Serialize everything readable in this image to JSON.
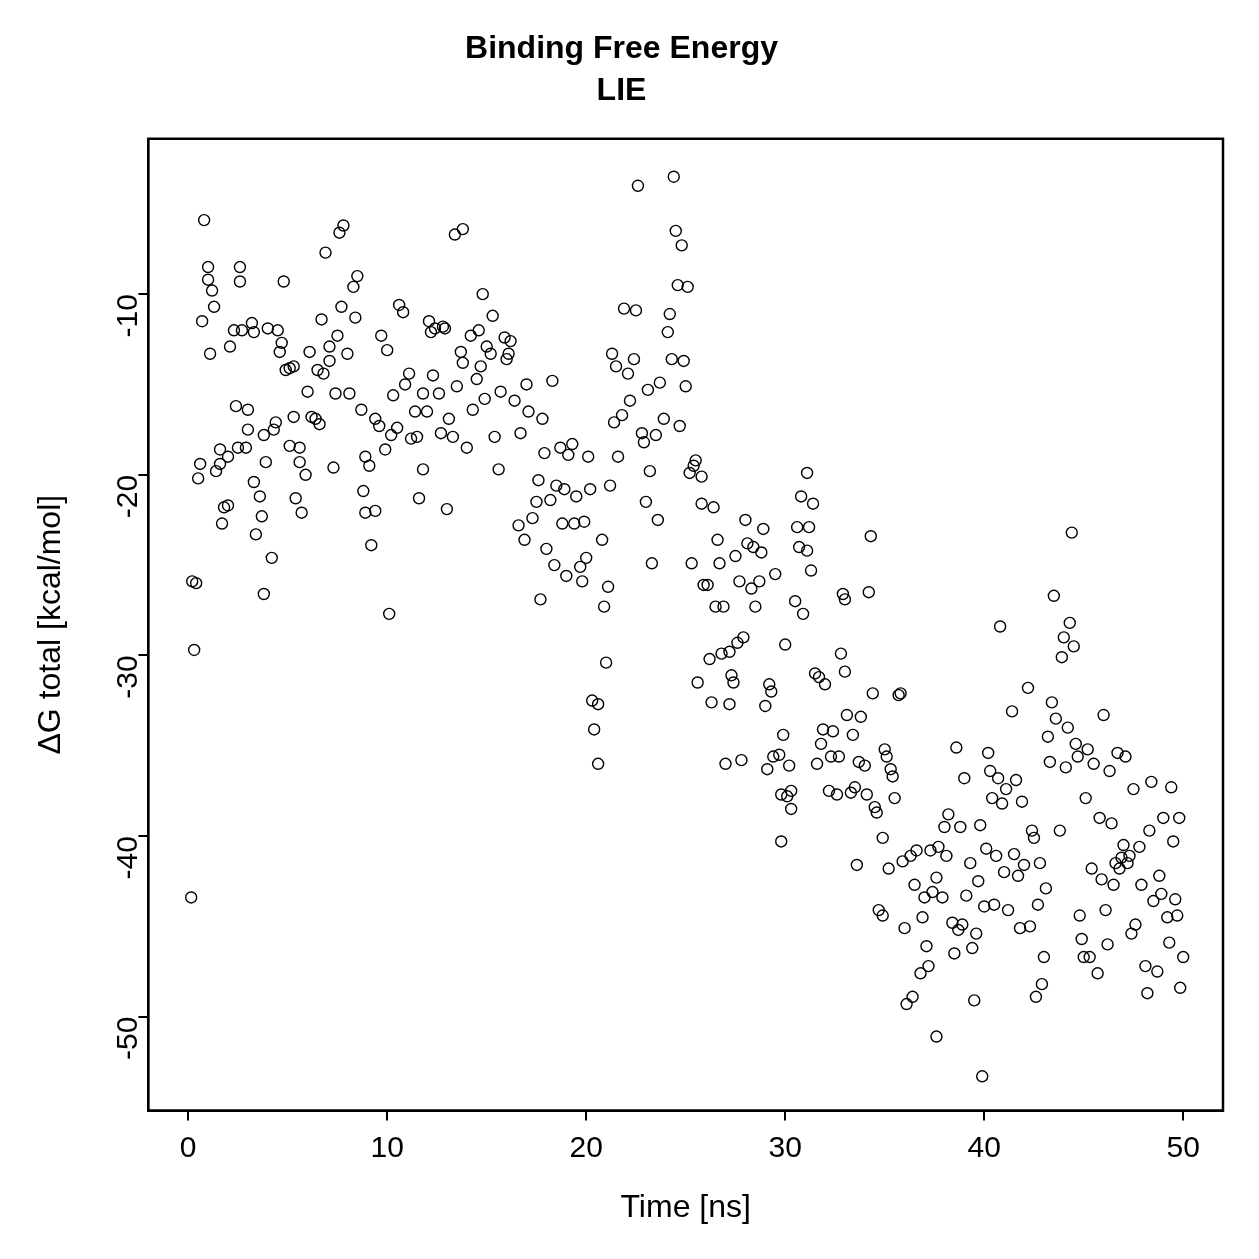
{
  "chart_data": {
    "type": "scatter",
    "title": "Binding Free Energy",
    "subtitle": "LIE",
    "xlabel": "Time [ns]",
    "ylabel": "ΔG total [kcal/mol]",
    "marker": "circle",
    "color": "#000000",
    "xlim": [
      -2,
      52
    ],
    "ylim": [
      -55.2,
      -1.4
    ],
    "xticks": [
      0,
      10,
      20,
      30,
      40,
      50
    ],
    "yticks": [
      -50,
      -40,
      -30,
      -20,
      -10
    ],
    "x": [
      0.15,
      0.2,
      0.4,
      0.3,
      0.8,
      0.7,
      1.0,
      1.0,
      1.2,
      1.3,
      1.1,
      0.5,
      0.6,
      1.4,
      1.6,
      1.6,
      1.7,
      1.8,
      2.0,
      2.0,
      2.1,
      2.3,
      2.4,
      2.5,
      2.6,
      2.6,
      2.7,
      2.9,
      3.0,
      3.0,
      3.2,
      3.3,
      3.3,
      3.4,
      3.6,
      3.7,
      3.8,
      3.8,
      3.9,
      4.0,
      4.2,
      4.3,
      4.4,
      4.5,
      4.6,
      4.7,
      4.8,
      4.9,
      5.1,
      5.1,
      5.3,
      5.3,
      5.4,
      5.6,
      5.6,
      5.7,
      5.9,
      6.0,
      6.1,
      6.2,
      6.4,
      6.5,
      6.6,
      6.7,
      6.8,
      6.9,
      7.1,
      7.1,
      7.3,
      7.4,
      7.5,
      7.6,
      7.8,
      7.7,
      8.0,
      8.1,
      8.3,
      8.4,
      8.5,
      8.7,
      8.8,
      8.9,
      8.9,
      9.1,
      9.2,
      9.4,
      9.4,
      9.6,
      9.7,
      9.9,
      10.0,
      10.1,
      10.2,
      10.3,
      10.5,
      10.6,
      10.8,
      10.9,
      11.1,
      11.2,
      11.4,
      11.5,
      11.6,
      11.8,
      11.8,
      12.0,
      12.1,
      12.2,
      12.3,
      12.4,
      12.6,
      12.7,
      12.8,
      12.9,
      13.0,
      13.1,
      13.3,
      13.4,
      13.5,
      13.7,
      13.8,
      13.8,
      14.0,
      14.2,
      14.3,
      14.5,
      14.6,
      14.7,
      14.8,
      14.9,
      15.0,
      15.2,
      15.3,
      15.4,
      15.6,
      15.7,
      15.9,
      16.0,
      16.1,
      16.2,
      16.4,
      16.6,
      16.7,
      16.9,
      17.0,
      17.1,
      17.3,
      17.5,
      17.6,
      17.7,
      17.8,
      17.9,
      18.0,
      18.2,
      18.3,
      18.4,
      18.5,
      18.7,
      18.8,
      18.9,
      19.0,
      19.1,
      19.3,
      19.4,
      19.5,
      19.7,
      19.8,
      19.9,
      20.0,
      20.1,
      20.2,
      20.3,
      20.4,
      20.6,
      20.6,
      20.8,
      20.9,
      21.0,
      21.1,
      21.2,
      21.3,
      21.4,
      21.5,
      21.6,
      21.8,
      21.9,
      22.1,
      22.2,
      22.4,
      22.5,
      22.6,
      22.8,
      22.9,
      23.0,
      23.1,
      23.2,
      23.3,
      23.5,
      23.6,
      23.7,
      23.9,
      24.1,
      24.2,
      24.3,
      24.4,
      24.5,
      24.6,
      24.8,
      24.7,
      24.9,
      25.0,
      25.1,
      25.2,
      25.3,
      25.4,
      25.5,
      25.6,
      25.8,
      25.8,
      25.9,
      26.1,
      26.2,
      26.3,
      26.4,
      26.5,
      26.6,
      26.7,
      26.8,
      26.9,
      27.0,
      27.2,
      27.2,
      27.3,
      27.4,
      27.5,
      27.6,
      27.7,
      27.8,
      27.9,
      28.0,
      28.1,
      28.3,
      28.4,
      28.5,
      28.7,
      28.8,
      28.9,
      29.0,
      29.1,
      29.2,
      29.3,
      29.4,
      29.5,
      29.7,
      29.8,
      29.8,
      29.9,
      30.0,
      30.1,
      30.2,
      30.3,
      30.3,
      30.5,
      30.6,
      30.7,
      30.8,
      30.9,
      31.1,
      31.1,
      31.2,
      31.3,
      31.4,
      31.5,
      31.6,
      31.7,
      31.8,
      31.9,
      32.0,
      32.2,
      32.3,
      32.4,
      32.6,
      32.7,
      32.8,
      32.9,
      33.0,
      33.0,
      33.1,
      33.3,
      33.4,
      33.5,
      33.6,
      33.7,
      33.8,
      34.0,
      34.1,
      34.2,
      34.3,
      34.4,
      34.5,
      34.6,
      34.7,
      34.9,
      34.9,
      35.0,
      35.1,
      35.2,
      35.3,
      35.4,
      35.5,
      35.7,
      35.8,
      35.9,
      36.0,
      36.1,
      36.3,
      36.4,
      36.5,
      36.6,
      36.8,
      36.9,
      37.0,
      37.1,
      37.2,
      37.3,
      37.4,
      37.6,
      37.6,
      37.7,
      37.9,
      38.0,
      38.1,
      38.2,
      38.4,
      38.5,
      38.6,
      38.7,
      38.8,
      38.9,
      39.0,
      39.1,
      39.3,
      39.4,
      39.5,
      39.6,
      39.7,
      39.8,
      39.9,
      40.0,
      40.1,
      40.2,
      40.3,
      40.4,
      40.5,
      40.6,
      40.7,
      40.8,
      40.9,
      41.0,
      41.1,
      41.2,
      41.4,
      41.5,
      41.6,
      41.7,
      41.8,
      41.9,
      42.0,
      42.2,
      42.3,
      42.4,
      42.5,
      42.6,
      42.7,
      42.8,
      42.9,
      43.0,
      43.1,
      43.2,
      43.3,
      43.4,
      43.5,
      43.6,
      43.8,
      43.9,
      44.0,
      44.1,
      44.2,
      44.3,
      44.4,
      44.5,
      44.6,
      44.7,
      44.8,
      44.9,
      45.0,
      45.1,
      45.2,
      45.3,
      45.4,
      45.5,
      45.7,
      45.8,
      45.9,
      46.0,
      46.1,
      46.2,
      46.3,
      46.4,
      46.5,
      46.6,
      46.7,
      46.8,
      46.9,
      47.0,
      47.1,
      47.2,
      47.3,
      47.4,
      47.5,
      47.6,
      47.8,
      47.9,
      48.1,
      48.2,
      48.3,
      48.4,
      48.5,
      48.7,
      48.8,
      48.9,
      49.0,
      49.2,
      49.3,
      49.4,
      49.5,
      49.6,
      49.7,
      49.8,
      49.85,
      50.0
    ],
    "values": [
      -43.4,
      -25.9,
      -26.0,
      -29.7,
      -5.9,
      -11.5,
      -8.5,
      -9.2,
      -9.8,
      -10.7,
      -13.3,
      -20.2,
      -19.4,
      -19.8,
      -19.4,
      -18.6,
      -22.7,
      -21.8,
      -21.7,
      -19.0,
      -12.9,
      -12.0,
      -16.2,
      -18.5,
      -9.3,
      -8.5,
      -12.0,
      -18.5,
      -17.5,
      -16.4,
      -11.6,
      -12.1,
      -20.4,
      -23.3,
      -21.2,
      -22.3,
      -26.6,
      -17.8,
      -19.3,
      -11.9,
      -24.6,
      -17.5,
      -17.1,
      -12.0,
      -13.2,
      -12.7,
      -9.3,
      -14.2,
      -14.1,
      -18.4,
      -16.8,
      -14.0,
      -21.3,
      -19.3,
      -18.5,
      -22.1,
      -20.0,
      -15.4,
      -13.2,
      -16.8,
      -16.9,
      -14.2,
      -17.2,
      -11.4,
      -14.4,
      -7.7,
      -12.9,
      -13.7,
      -19.6,
      -15.5,
      -12.3,
      -6.6,
      -6.2,
      -10.7,
      -13.3,
      -15.5,
      -9.6,
      -11.3,
      -9.0,
      -16.4,
      -20.9,
      -19.0,
      -22.1,
      -19.5,
      -23.9,
      -22.0,
      -16.9,
      -17.3,
      -12.3,
      -18.6,
      -13.1,
      -27.7,
      -17.8,
      -15.6,
      -17.4,
      -10.6,
      -11.0,
      -15.0,
      -14.4,
      -18.0,
      -16.5,
      -17.9,
      -21.3,
      -15.5,
      -19.7,
      -16.5,
      -11.5,
      -12.1,
      -14.5,
      -11.9,
      -15.5,
      -17.7,
      -11.8,
      -11.9,
      -21.9,
      -16.9,
      -17.9,
      -6.7,
      -15.1,
      -13.2,
      -13.8,
      -6.4,
      -18.5,
      -12.3,
      -16.4,
      -14.7,
      -12.0,
      -14.0,
      -10.0,
      -15.8,
      -12.9,
      -13.3,
      -11.2,
      -17.9,
      -19.7,
      -15.4,
      -12.4,
      -13.6,
      -13.3,
      -12.6,
      -15.9,
      -22.8,
      -17.7,
      -23.6,
      -15.0,
      -16.5,
      -22.4,
      -21.5,
      -20.3,
      -26.9,
      -16.9,
      -18.8,
      -24.1,
      -21.4,
      -14.8,
      -25.0,
      -20.6,
      -18.5,
      -22.7,
      -20.8,
      -25.6,
      -18.9,
      -18.3,
      -22.7,
      -21.2,
      -25.1,
      -25.9,
      -22.6,
      -24.6,
      -19.0,
      -20.8,
      -32.5,
      -34.1,
      -32.7,
      -36.0,
      -23.6,
      -27.3,
      -30.4,
      -26.2,
      -20.6,
      -13.3,
      -17.1,
      -14.0,
      -19.0,
      -16.7,
      -10.8,
      -14.4,
      -15.9,
      -13.6,
      -10.9,
      -4.0,
      -17.7,
      -18.2,
      -21.5,
      -15.3,
      -19.8,
      -24.9,
      -17.8,
      -22.5,
      -14.9,
      -16.9,
      -12.1,
      -11.1,
      -13.6,
      -3.5,
      -6.5,
      -9.5,
      -7.3,
      -17.3,
      -13.7,
      -15.1,
      -9.6,
      -19.9,
      -24.9,
      -19.5,
      -19.2,
      -31.5,
      -21.6,
      -20.1,
      -26.1,
      -26.1,
      -30.2,
      -32.6,
      -21.8,
      -27.3,
      -23.6,
      -24.9,
      -29.9,
      -27.3,
      -36.0,
      -29.8,
      -32.7,
      -31.1,
      -31.5,
      -24.5,
      -29.3,
      -25.9,
      -35.8,
      -29.0,
      -22.5,
      -23.8,
      -26.3,
      -24.0,
      -27.3,
      -25.9,
      -24.3,
      -23.0,
      -32.8,
      -36.3,
      -31.6,
      -32.0,
      -35.6,
      -25.5,
      -35.5,
      -37.7,
      -40.3,
      -34.4,
      -29.4,
      -37.8,
      -36.1,
      -38.5,
      -37.5,
      -27.0,
      -22.9,
      -24.0,
      -21.2,
      -27.7,
      -19.9,
      -24.2,
      -22.9,
      -25.3,
      -21.6,
      -31.0,
      -36.0,
      -31.2,
      -34.9,
      -34.1,
      -31.6,
      -37.5,
      -35.6,
      -34.2,
      -37.7,
      -35.6,
      -29.9,
      -26.6,
      -26.9,
      -30.9,
      -33.3,
      -37.6,
      -34.4,
      -37.3,
      -41.6,
      -35.9,
      -33.4,
      -36.1,
      -37.7,
      -26.5,
      -23.4,
      -32.1,
      -38.4,
      -38.7,
      -44.1,
      -40.1,
      -44.4,
      -35.2,
      -35.6,
      -41.8,
      -36.3,
      -36.7,
      -37.9,
      -32.2,
      -32.1,
      -41.4,
      -45.1,
      -49.3,
      -41.1,
      -48.9,
      -42.7,
      -40.8,
      -47.6,
      -44.5,
      -43.4,
      -46.1,
      -47.2,
      -40.8,
      -43.1,
      -42.3,
      -51.1,
      -40.6,
      -43.4,
      -39.5,
      -41.1,
      -38.8,
      -44.8,
      -46.5,
      -35.1,
      -45.2,
      -39.5,
      -44.9,
      -36.8,
      -43.3,
      -41.5,
      -46.2,
      -49.1,
      -45.4,
      -42.5,
      -39.4,
      -53.3,
      -43.9,
      -40.7,
      -35.4,
      -36.4,
      -37.9,
      -43.8,
      -41.1,
      -36.8,
      -28.4,
      -38.2,
      -42.0,
      -37.4,
      -44.1,
      -33.1,
      -41.0,
      -36.9,
      -42.2,
      -45.1,
      -38.1,
      -41.6,
      -31.8,
      -45.0,
      -39.7,
      -40.1,
      -48.9,
      -43.8,
      -41.5,
      -48.2,
      -46.7,
      -42.9,
      -34.5,
      -35.9,
      -32.6,
      -26.7,
      -33.5,
      -39.7,
      -30.1,
      -29.0,
      -36.2,
      -34.0,
      -28.2,
      -23.2,
      -29.5,
      -34.9,
      -35.6,
      -44.4,
      -45.7,
      -46.7,
      -37.9,
      -35.2,
      -46.7,
      -41.8,
      -36.0,
      -47.6,
      -39.0,
      -42.4,
      -33.3,
      -44.1,
      -46.0,
      -36.4,
      -39.3,
      -42.7,
      -41.5,
      -35.4,
      -41.8,
      -41.2,
      -40.5,
      -35.6,
      -41.5,
      -41.1,
      -45.4,
      -37.4,
      -44.9,
      -40.6,
      -42.7,
      -47.2,
      -48.7,
      -39.7,
      -37.0,
      -43.6,
      -47.5,
      -42.2,
      -43.2,
      -39.0,
      -44.5,
      -45.9,
      -37.3,
      -40.3,
      -43.5,
      -44.4,
      -39.0,
      -48.4,
      -46.7
    ]
  }
}
